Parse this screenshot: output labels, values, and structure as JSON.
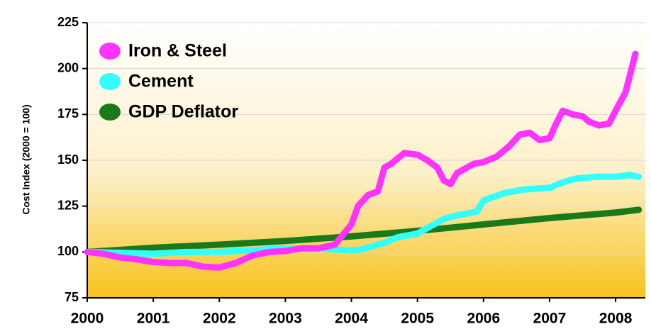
{
  "chart_data": {
    "type": "line",
    "y_label": "Cost Index (2000 = 100)",
    "xlim": [
      2000,
      2008.45
    ],
    "xticks": [
      2000,
      2001,
      2002,
      2003,
      2004,
      2005,
      2006,
      2007,
      2008
    ],
    "ylim": [
      75,
      225
    ],
    "yticks": [
      75,
      100,
      125,
      150,
      175,
      200,
      225
    ],
    "grid": true,
    "legend": "upper left",
    "series": [
      {
        "name": "Iron & Steel",
        "color": "#ff33ff",
        "x": [
          2000,
          2000.25,
          2000.5,
          2000.75,
          2001,
          2001.25,
          2001.5,
          2001.75,
          2002,
          2002.25,
          2002.5,
          2002.75,
          2003,
          2003.25,
          2003.5,
          2003.75,
          2004,
          2004.1,
          2004.25,
          2004.4,
          2004.5,
          2004.6,
          2004.8,
          2005,
          2005.15,
          2005.3,
          2005.4,
          2005.5,
          2005.6,
          2005.75,
          2005.85,
          2006,
          2006.2,
          2006.4,
          2006.55,
          2006.7,
          2006.85,
          2007,
          2007.1,
          2007.2,
          2007.35,
          2007.5,
          2007.6,
          2007.75,
          2007.9,
          2008,
          2008.15,
          2008.3
        ],
        "values": [
          100,
          99,
          97,
          96,
          94.5,
          94,
          94,
          92,
          91.5,
          94,
          98,
          100,
          100.5,
          102,
          102,
          104,
          115,
          125,
          131,
          133,
          146,
          148,
          154,
          153,
          150,
          146,
          139,
          137,
          143,
          146,
          148,
          149,
          152,
          158,
          164,
          165,
          161,
          162,
          170,
          177,
          175,
          174,
          171,
          169,
          170,
          177,
          187,
          208
        ]
      },
      {
        "name": "Cement",
        "color": "#33ffff",
        "x": [
          2000,
          2001,
          2001.5,
          2002,
          2002.5,
          2003,
          2003.5,
          2003.9,
          2004.1,
          2004.3,
          2004.5,
          2004.7,
          2005,
          2005.2,
          2005.4,
          2005.6,
          2005.9,
          2006,
          2006.3,
          2006.6,
          2007,
          2007.2,
          2007.4,
          2007.7,
          2008,
          2008.2,
          2008.35
        ],
        "values": [
          100,
          99,
          100,
          100,
          101,
          102,
          102,
          101,
          101,
          103,
          105,
          108,
          110,
          114,
          118,
          120,
          122,
          128,
          132,
          134,
          135,
          138,
          140,
          141,
          141,
          142,
          141
        ]
      },
      {
        "name": "GDP Deflator",
        "color": "#1a7a1a",
        "x": [
          2000,
          2001,
          2002,
          2003,
          2004,
          2005,
          2006,
          2007,
          2008,
          2008.35
        ],
        "values": [
          100,
          102.3,
          104,
          106,
          108.5,
          111.5,
          115,
          118.5,
          121.5,
          123
        ]
      }
    ]
  }
}
